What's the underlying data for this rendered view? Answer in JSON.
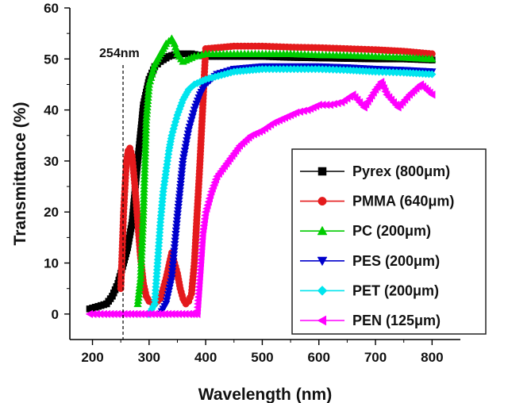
{
  "chart_data": {
    "type": "scatter",
    "xlabel": "Wavelength (nm)",
    "ylabel": "Transmittance (%)",
    "xlim": [
      160,
      850
    ],
    "ylim": [
      -5,
      60
    ],
    "x_ticks": [
      "200",
      "300",
      "400",
      "500",
      "600",
      "700",
      "800"
    ],
    "y_ticks": [
      "0",
      "10",
      "20",
      "30",
      "40",
      "50",
      "60"
    ],
    "x_tick_values": [
      200,
      300,
      400,
      500,
      600,
      700,
      800
    ],
    "y_tick_values": [
      0,
      10,
      20,
      30,
      40,
      50,
      60
    ],
    "grid": false,
    "legend_position": "bottom-right",
    "annotations": [
      {
        "text": "254nm",
        "x": 254,
        "style": "dashed-vertical-line"
      }
    ],
    "series": [
      {
        "name": "Pyrex (800μm)",
        "color": "#000000",
        "marker": "square",
        "x": [
          195,
          210,
          225,
          235,
          245,
          255,
          262,
          270,
          280,
          290,
          300,
          310,
          320,
          335,
          350,
          375,
          400,
          450,
          500,
          550,
          600,
          650,
          700,
          750,
          800
        ],
        "y": [
          1,
          1.5,
          2,
          3.5,
          6,
          10,
          13,
          18,
          30,
          41,
          46,
          48.5,
          49.5,
          50.5,
          51,
          51,
          50.5,
          50.5,
          50.5,
          50.3,
          50.2,
          50.1,
          50,
          50,
          49.8
        ]
      },
      {
        "name": "PMMA (640μm)",
        "color": "#e41a1c",
        "marker": "circle",
        "x": [
          250,
          255,
          260,
          263,
          266,
          270,
          275,
          280,
          285,
          290,
          295,
          300,
          310,
          320,
          330,
          340,
          350,
          355,
          360,
          365,
          370,
          375,
          380,
          390,
          400,
          450,
          500,
          550,
          600,
          650,
          700,
          750,
          800
        ],
        "y": [
          5,
          20,
          30,
          32,
          32.5,
          31,
          25,
          18,
          11,
          6,
          3.5,
          2.5,
          2,
          3,
          7,
          12,
          8,
          5,
          3,
          2,
          2.5,
          4,
          10,
          30,
          52,
          52.5,
          52.5,
          52.3,
          52.2,
          52,
          51.8,
          51.5,
          51
        ]
      },
      {
        "name": "PC (200μm)",
        "color": "#00cc00",
        "marker": "triangle-up",
        "x": [
          280,
          285,
          290,
          295,
          300,
          310,
          320,
          330,
          340,
          345,
          350,
          360,
          370,
          380,
          400,
          450,
          500,
          550,
          600,
          650,
          700,
          750,
          800
        ],
        "y": [
          2,
          7,
          20,
          38,
          45,
          49,
          51,
          53,
          54,
          53,
          51,
          49.5,
          50,
          50.5,
          51,
          51,
          51,
          51,
          50.8,
          50.7,
          50.5,
          50.3,
          50
        ]
      },
      {
        "name": "PES (200μm)",
        "color": "#0000cc",
        "marker": "triangle-down",
        "x": [
          320,
          330,
          340,
          345,
          350,
          360,
          370,
          380,
          390,
          400,
          420,
          450,
          500,
          550,
          600,
          650,
          700,
          750,
          800
        ],
        "y": [
          0,
          2,
          7,
          13,
          19,
          30,
          36,
          40,
          43,
          45,
          47,
          48,
          48.5,
          48.5,
          48.5,
          48.3,
          48,
          47.8,
          47.5
        ]
      },
      {
        "name": "PET (200μm)",
        "color": "#00e5ee",
        "marker": "diamond",
        "x": [
          300,
          310,
          315,
          320,
          325,
          330,
          335,
          340,
          350,
          360,
          370,
          380,
          400,
          450,
          500,
          550,
          600,
          650,
          700,
          750,
          800
        ],
        "y": [
          0,
          2,
          10,
          18,
          24,
          28,
          32,
          35,
          39,
          42,
          44,
          45,
          46,
          47.5,
          48,
          48,
          48,
          47.8,
          47.5,
          47.3,
          47
        ]
      },
      {
        "name": "PEN (125μm)",
        "color": "#ff00ff",
        "marker": "triangle-left",
        "x": [
          195,
          220,
          250,
          280,
          310,
          340,
          370,
          385,
          390,
          395,
          400,
          410,
          420,
          440,
          460,
          480,
          500,
          520,
          540,
          560,
          580,
          600,
          620,
          640,
          660,
          680,
          700,
          710,
          720,
          740,
          760,
          780,
          800
        ],
        "y": [
          0,
          0,
          0,
          0,
          0,
          0,
          0,
          0,
          8,
          16,
          20,
          24,
          27,
          30,
          33,
          35,
          36,
          37.5,
          38.5,
          39.5,
          40,
          41,
          41,
          41.5,
          43,
          40.5,
          44,
          45.5,
          43,
          40.5,
          43,
          45,
          43
        ]
      }
    ]
  }
}
